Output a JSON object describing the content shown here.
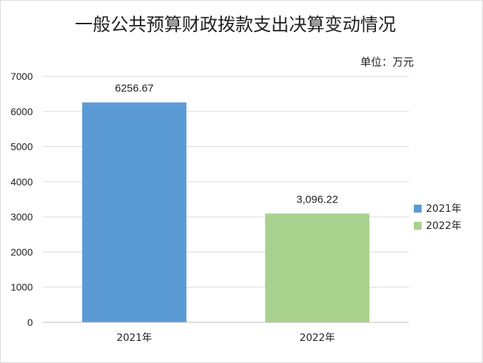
{
  "chart_data": {
    "type": "bar",
    "title": "一般公共预算财政拨款支出决算变动情况",
    "unit_label": "单位：万元",
    "categories": [
      "2021年",
      "2022年"
    ],
    "values": [
      6256.67,
      3096.22
    ],
    "data_labels": [
      "6256.67",
      "3,096.22"
    ],
    "colors": [
      "#5b9bd5",
      "#a9d18e"
    ],
    "ylim": [
      0,
      7000
    ],
    "yticks": [
      "0",
      "1000",
      "2000",
      "3000",
      "4000",
      "5000",
      "6000",
      "7000"
    ],
    "grid": true,
    "legend": {
      "position": "right",
      "items": [
        {
          "label": "2021年",
          "color": "#5b9bd5"
        },
        {
          "label": "2022年",
          "color": "#a9d18e"
        }
      ]
    }
  }
}
